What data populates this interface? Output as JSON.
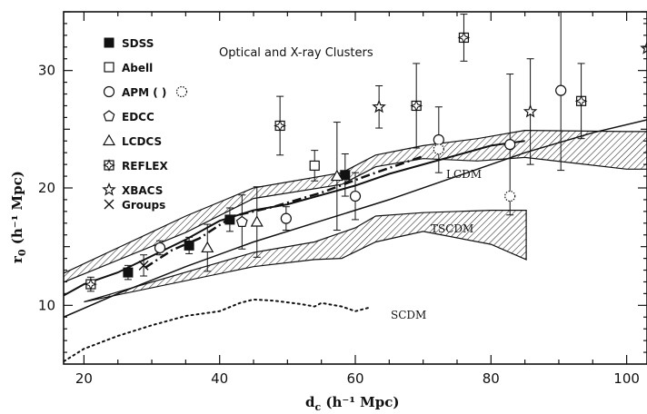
{
  "chart_data": {
    "type": "scatter",
    "annotation": "Optical and X-ray Clusters",
    "xlabel": "d_c (h^-1 Mpc)",
    "xlabel_main": "d",
    "xlabel_sub": "c",
    "xlabel_unit": " (h⁻¹ Mpc)",
    "ylabel": "r_0 (h^-1 Mpc)",
    "ylabel_main": "r",
    "ylabel_sub": "0",
    "ylabel_unit": " (h⁻¹ Mpc)",
    "xlim": [
      17,
      103
    ],
    "ylim": [
      5,
      35
    ],
    "xticks": [
      "20",
      "40",
      "60",
      "80",
      "100"
    ],
    "xtick_values": [
      20,
      40,
      60,
      80,
      100
    ],
    "yticks": [
      "10",
      "20",
      "30"
    ],
    "ytick_values": [
      10,
      20,
      30
    ],
    "legend_position": "top-left",
    "series": [
      {
        "name": "SDSS",
        "marker": "filled-square",
        "points": [
          {
            "x": 26.5,
            "y": 12.8,
            "err": 0.6
          },
          {
            "x": 35.5,
            "y": 15.1,
            "err": 0.7
          },
          {
            "x": 41.5,
            "y": 17.3,
            "err": 1.0
          },
          {
            "x": 58.5,
            "y": 21.1,
            "err": 1.8
          }
        ]
      },
      {
        "name": "Abell",
        "marker": "open-square",
        "points": [
          {
            "x": 54,
            "y": 21.9,
            "err": 1.3
          }
        ]
      },
      {
        "name": "APM ( )",
        "marker": "open-circle",
        "points": [
          {
            "x": 31.2,
            "y": 14.9,
            "err": 0.6
          },
          {
            "x": 49.8,
            "y": 17.4,
            "err": 1.0
          },
          {
            "x": 60,
            "y": 19.3,
            "err": 2.0
          },
          {
            "x": 72.3,
            "y": 24.1,
            "err": 2.8
          },
          {
            "x": 82.8,
            "y": 23.7,
            "err": 6.0
          },
          {
            "x": 90.3,
            "y": 28.3,
            "err": 6.8
          }
        ]
      },
      {
        "name": "APM dotted",
        "marker": "dotted-circle",
        "points": [
          {
            "x": 72.3,
            "y": 23.3,
            "err": 0
          },
          {
            "x": 82.8,
            "y": 19.3,
            "err": 0
          }
        ]
      },
      {
        "name": "EDCC",
        "marker": "open-pentagon",
        "points": [
          {
            "x": 43.3,
            "y": 17.1,
            "err": 2.3
          }
        ]
      },
      {
        "name": "LCDCS",
        "marker": "open-triangle",
        "points": [
          {
            "x": 38.2,
            "y": 14.9,
            "err": 2.0
          },
          {
            "x": 45.5,
            "y": 17.1,
            "err": 3.0
          },
          {
            "x": 57.3,
            "y": 21.0,
            "err": 4.6
          }
        ]
      },
      {
        "name": "REFLEX",
        "marker": "square-star",
        "points": [
          {
            "x": 21.0,
            "y": 11.8,
            "err": 0.6
          },
          {
            "x": 48.9,
            "y": 25.3,
            "err": 2.5
          },
          {
            "x": 69.0,
            "y": 27.0,
            "err": 3.6
          },
          {
            "x": 76.0,
            "y": 32.8,
            "err": 2.0
          },
          {
            "x": 93.3,
            "y": 27.4,
            "err": 3.2
          }
        ]
      },
      {
        "name": "XBACS",
        "marker": "open-star",
        "points": [
          {
            "x": 63.5,
            "y": 26.9,
            "err": 1.8
          },
          {
            "x": 85.8,
            "y": 26.5,
            "err": 4.5
          },
          {
            "x": 103,
            "y": 31.9,
            "err": 2.5
          }
        ]
      },
      {
        "name": "Groups",
        "marker": "cross",
        "points": [
          {
            "x": 28.8,
            "y": 13.4,
            "err": 0.9
          }
        ]
      }
    ],
    "models": [
      {
        "name": "LCDM",
        "label": "LCDM",
        "label_at": [
          91.4,
          79.5
        ],
        "upper": [
          [
            15,
            12.2
          ],
          [
            35,
            17.6
          ],
          [
            45,
            20.0
          ],
          [
            58,
            21.3
          ],
          [
            63,
            22.8
          ],
          [
            70,
            23.6
          ],
          [
            78,
            24.2
          ],
          [
            85,
            24.9
          ],
          [
            100,
            24.8
          ],
          [
            103,
            24.8
          ]
        ],
        "lower": [
          [
            103,
            21.6
          ],
          [
            100,
            21.6
          ],
          [
            85,
            22.6
          ],
          [
            78,
            22.3
          ],
          [
            70,
            22.5
          ],
          [
            63,
            21.8
          ],
          [
            58,
            20.3
          ],
          [
            45,
            19.1
          ],
          [
            35,
            16.2
          ],
          [
            15,
            11.5
          ]
        ]
      },
      {
        "name": "TSCDM",
        "label": "TSCDM",
        "label_at": [
          74.3,
          103.0
        ],
        "upper": [
          [
            45,
            14.5
          ],
          [
            54,
            15.4
          ],
          [
            57,
            16.0
          ],
          [
            60,
            16.6
          ],
          [
            63,
            17.6
          ],
          [
            70,
            17.9
          ],
          [
            80,
            18.1
          ],
          [
            85.2,
            18.1
          ]
        ],
        "lower": [
          [
            85.2,
            13.9
          ],
          [
            80,
            15.2
          ],
          [
            70,
            16.3
          ],
          [
            63,
            15.4
          ],
          [
            58,
            14.0
          ],
          [
            54,
            13.9
          ],
          [
            45,
            13.3
          ],
          [
            20,
            10.3
          ]
        ]
      }
    ],
    "lines": [
      {
        "name": "model-line",
        "style": "solid",
        "width": 1.5,
        "points": [
          [
            15,
            8.5
          ],
          [
            25,
            11.0
          ],
          [
            35,
            13.3
          ],
          [
            45,
            15.4
          ],
          [
            55,
            17.2
          ],
          [
            65,
            19.0
          ],
          [
            75,
            21.0
          ],
          [
            85,
            23.0
          ],
          [
            95,
            24.7
          ],
          [
            103,
            25.8
          ]
        ]
      },
      {
        "name": "fit-line",
        "style": "solid",
        "width": 2,
        "points": [
          [
            15,
            10.2
          ],
          [
            20,
            11.8
          ],
          [
            25,
            12.8
          ],
          [
            30,
            14.2
          ],
          [
            35,
            15.6
          ],
          [
            40,
            17.2
          ],
          [
            45,
            18.1
          ],
          [
            50,
            18.6
          ],
          [
            55,
            19.4
          ],
          [
            60,
            20.2
          ],
          [
            65,
            21.2
          ],
          [
            70,
            22.0
          ],
          [
            75,
            22.8
          ],
          [
            80,
            23.6
          ],
          [
            85,
            24.0
          ]
        ]
      },
      {
        "name": "dash-line",
        "style": "dashdot",
        "width": 2.5,
        "points": [
          [
            29,
            13.2
          ],
          [
            33,
            14.7
          ],
          [
            37,
            15.7
          ],
          [
            42,
            17.6
          ],
          [
            48,
            18.4
          ],
          [
            55,
            19.6
          ],
          [
            62,
            21.1
          ],
          [
            70,
            22.7
          ]
        ]
      },
      {
        "name": "SCDM",
        "style": "dotted",
        "width": 2,
        "label": "SCDM",
        "label_at": [
          64.5,
          347
        ],
        "points": [
          [
            15,
            4.5
          ],
          [
            20,
            6.3
          ],
          [
            25,
            7.4
          ],
          [
            30,
            8.3
          ],
          [
            35,
            9.1
          ],
          [
            40,
            9.5
          ],
          [
            43,
            10.2
          ],
          [
            45,
            10.5
          ],
          [
            48,
            10.4
          ],
          [
            52,
            10.1
          ],
          [
            54,
            9.9
          ],
          [
            55,
            10.2
          ],
          [
            58,
            9.9
          ],
          [
            60,
            9.5
          ],
          [
            62,
            9.8
          ]
        ]
      }
    ]
  }
}
